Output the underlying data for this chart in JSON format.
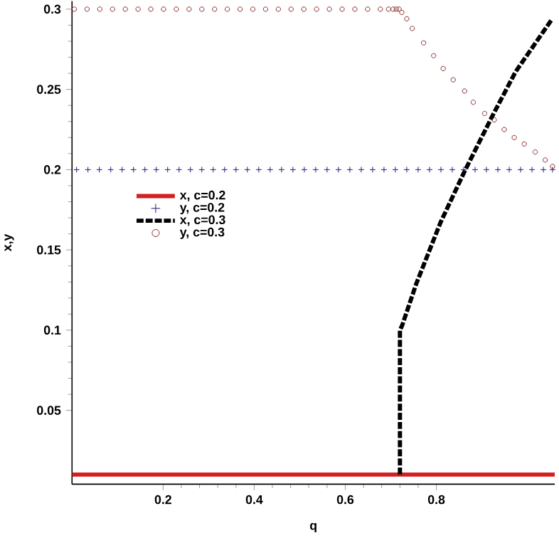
{
  "chart_data": {
    "type": "line",
    "xlabel": "q",
    "ylabel": "x,y",
    "xlim": [
      0,
      1.06
    ],
    "ylim": [
      0.004,
      0.305
    ],
    "xticks": [
      0.2,
      0.4,
      0.6,
      0.8
    ],
    "yticks": [
      0.05,
      0.1,
      0.15,
      0.2,
      0.25,
      0.3
    ],
    "grid": false,
    "legend": "left",
    "series": [
      {
        "name": "x, c=0.2",
        "color": "#d42020",
        "line_style": "solid",
        "marker": "none",
        "x": [
          0,
          1.06
        ],
        "values": [
          0.01,
          0.01
        ]
      },
      {
        "name": "y, c=0.2",
        "type": "scatter",
        "color": "#1a1a80",
        "marker": "cross",
        "x": [
          0.01,
          0.035,
          0.06,
          0.085,
          0.11,
          0.135,
          0.16,
          0.185,
          0.21,
          0.235,
          0.26,
          0.285,
          0.31,
          0.335,
          0.36,
          0.385,
          0.41,
          0.435,
          0.46,
          0.485,
          0.51,
          0.535,
          0.56,
          0.585,
          0.61,
          0.635,
          0.66,
          0.685,
          0.71,
          0.735,
          0.76,
          0.785,
          0.81,
          0.835,
          0.86,
          0.885,
          0.91,
          0.935,
          0.96,
          0.985,
          1.01,
          1.035,
          1.055
        ],
        "values": [
          0.2,
          0.2,
          0.2,
          0.2,
          0.2,
          0.2,
          0.2,
          0.2,
          0.2,
          0.2,
          0.2,
          0.2,
          0.2,
          0.2,
          0.2,
          0.2,
          0.2,
          0.2,
          0.2,
          0.2,
          0.2,
          0.2,
          0.2,
          0.2,
          0.2,
          0.2,
          0.2,
          0.2,
          0.2,
          0.2,
          0.2,
          0.2,
          0.2,
          0.2,
          0.2,
          0.2,
          0.2,
          0.2,
          0.2,
          0.2,
          0.2,
          0.2,
          0.2
        ]
      },
      {
        "name": "x, c=0.3",
        "color": "#000000",
        "line_style": "dashed",
        "marker": "none",
        "x": [
          0.72,
          0.72,
          0.725,
          0.756,
          0.809,
          0.862,
          0.924,
          0.974,
          1.052
        ],
        "values": [
          0.01,
          0.1,
          0.103,
          0.129,
          0.167,
          0.199,
          0.234,
          0.261,
          0.293
        ]
      },
      {
        "name": "y, c=0.3",
        "type": "scatter",
        "color": "#8b2a2a",
        "marker": "circle",
        "x": [
          0.005,
          0.033,
          0.061,
          0.089,
          0.117,
          0.145,
          0.173,
          0.201,
          0.229,
          0.257,
          0.285,
          0.313,
          0.341,
          0.369,
          0.397,
          0.425,
          0.453,
          0.481,
          0.509,
          0.537,
          0.565,
          0.593,
          0.621,
          0.649,
          0.677,
          0.695,
          0.705,
          0.712,
          0.718,
          0.724,
          0.735,
          0.747,
          0.772,
          0.794,
          0.815,
          0.837,
          0.862,
          0.881,
          0.906,
          0.927,
          0.949,
          0.971,
          0.993,
          1.017,
          1.039,
          1.055
        ],
        "values": [
          0.3,
          0.3,
          0.3,
          0.3,
          0.3,
          0.3,
          0.3,
          0.3,
          0.3,
          0.3,
          0.3,
          0.3,
          0.3,
          0.3,
          0.3,
          0.3,
          0.3,
          0.3,
          0.3,
          0.3,
          0.3,
          0.3,
          0.3,
          0.3,
          0.3,
          0.3,
          0.3,
          0.3,
          0.3,
          0.298,
          0.294,
          0.288,
          0.279,
          0.271,
          0.263,
          0.256,
          0.249,
          0.242,
          0.235,
          0.231,
          0.225,
          0.22,
          0.216,
          0.211,
          0.206,
          0.202
        ]
      }
    ]
  }
}
